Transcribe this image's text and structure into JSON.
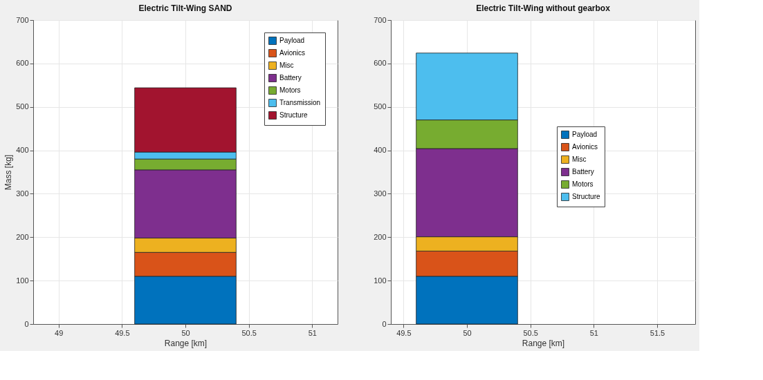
{
  "chart_data": [
    {
      "type": "bar",
      "title": "Electric Tilt-Wing SAND",
      "xlabel": "Range [km]",
      "ylabel": "Mass [kg]",
      "x": [
        50
      ],
      "stacked": true,
      "series": [
        {
          "name": "Payload",
          "color": "#0072bd",
          "values": [
            110
          ]
        },
        {
          "name": "Avionics",
          "color": "#d95319",
          "values": [
            55
          ]
        },
        {
          "name": "Misc",
          "color": "#edb120",
          "values": [
            33
          ]
        },
        {
          "name": "Battery",
          "color": "#7e2f8e",
          "values": [
            157
          ]
        },
        {
          "name": "Motors",
          "color": "#77ac30",
          "values": [
            25
          ]
        },
        {
          "name": "Transmission",
          "color": "#4dbeee",
          "values": [
            16
          ]
        },
        {
          "name": "Structure",
          "color": "#a2142f",
          "values": [
            148
          ]
        }
      ],
      "xlim": [
        48.8,
        51.2
      ],
      "xticks": [
        49,
        49.5,
        50,
        50.5,
        51
      ],
      "ylim": [
        0,
        700
      ],
      "yticks": [
        0,
        100,
        200,
        300,
        400,
        500,
        600,
        700
      ],
      "grid": true,
      "legend": "top right"
    },
    {
      "type": "bar",
      "title": "Electric Tilt-Wing without gearbox",
      "xlabel": "Range [km]",
      "x": [
        50
      ],
      "stacked": true,
      "series": [
        {
          "name": "Payload",
          "color": "#0072bd",
          "values": [
            110
          ]
        },
        {
          "name": "Avionics",
          "color": "#d95319",
          "values": [
            58
          ]
        },
        {
          "name": "Misc",
          "color": "#edb120",
          "values": [
            33
          ]
        },
        {
          "name": "Battery",
          "color": "#7e2f8e",
          "values": [
            203
          ]
        },
        {
          "name": "Motors",
          "color": "#77ac30",
          "values": [
            66
          ]
        },
        {
          "name": "Structure",
          "color": "#4dbeee",
          "values": [
            154
          ]
        }
      ],
      "xlim": [
        49.4,
        51.8
      ],
      "xticks": [
        49.5,
        50,
        50.5,
        51,
        51.5
      ],
      "ylim": [
        0,
        700
      ],
      "yticks": [
        0,
        100,
        200,
        300,
        400,
        500,
        600,
        700
      ],
      "grid": true,
      "legend": "right"
    }
  ]
}
